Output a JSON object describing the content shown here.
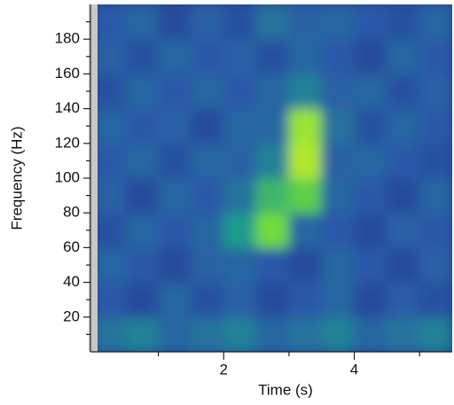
{
  "chart_data": {
    "type": "heatmap",
    "xlabel": "Time (s)",
    "ylabel": "Frequency (Hz)",
    "xbins": [
      0,
      0.5,
      1,
      1.5,
      2,
      2.5,
      3,
      3.5,
      4,
      4.5,
      5,
      5.5
    ],
    "ybins": [
      0,
      20,
      40,
      60,
      80,
      100,
      120,
      140,
      160,
      180,
      200
    ],
    "z": [
      [
        0.35,
        0.4,
        0.3,
        0.35,
        0.4,
        0.3,
        0.35,
        0.4,
        0.3,
        0.35,
        0.4
      ],
      [
        0.25,
        0.2,
        0.3,
        0.22,
        0.28,
        0.2,
        0.25,
        0.3,
        0.2,
        0.27,
        0.22
      ],
      [
        0.3,
        0.25,
        0.2,
        0.28,
        0.3,
        0.25,
        0.2,
        0.3,
        0.25,
        0.2,
        0.28
      ],
      [
        0.22,
        0.3,
        0.25,
        0.3,
        0.5,
        0.75,
        0.3,
        0.25,
        0.2,
        0.28,
        0.25
      ],
      [
        0.28,
        0.2,
        0.3,
        0.25,
        0.35,
        0.6,
        0.7,
        0.3,
        0.25,
        0.2,
        0.3
      ],
      [
        0.25,
        0.3,
        0.22,
        0.3,
        0.28,
        0.4,
        0.9,
        0.28,
        0.3,
        0.25,
        0.22
      ],
      [
        0.3,
        0.25,
        0.28,
        0.2,
        0.3,
        0.3,
        0.85,
        0.35,
        0.22,
        0.3,
        0.25
      ],
      [
        0.22,
        0.3,
        0.25,
        0.3,
        0.25,
        0.3,
        0.4,
        0.28,
        0.3,
        0.22,
        0.28
      ],
      [
        0.28,
        0.22,
        0.3,
        0.25,
        0.28,
        0.22,
        0.3,
        0.25,
        0.2,
        0.3,
        0.25
      ],
      [
        0.25,
        0.3,
        0.2,
        0.28,
        0.22,
        0.35,
        0.28,
        0.3,
        0.25,
        0.22,
        0.3
      ]
    ],
    "xlim": [
      0,
      5.5
    ],
    "ylim": [
      0,
      200
    ],
    "xticks": [
      2,
      4
    ],
    "xminorticks": [
      1,
      3,
      5
    ],
    "yticks": [
      20,
      40,
      60,
      80,
      100,
      120,
      140,
      160,
      180
    ],
    "yminorticks": [
      10,
      30,
      50,
      70,
      90,
      110,
      130,
      150,
      170,
      190
    ],
    "colormap": [
      "#1b1d6b",
      "#2a58a8",
      "#1f9c8c",
      "#6fdc3a",
      "#dcf020"
    ]
  }
}
